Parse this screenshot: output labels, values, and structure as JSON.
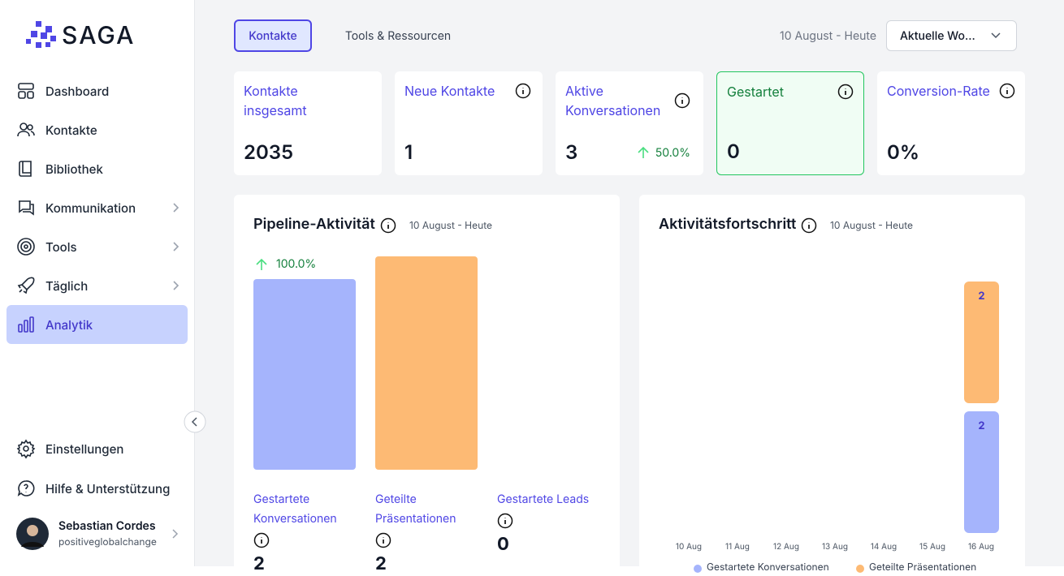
{
  "sidebar": {
    "logo": "SAGA",
    "nav": [
      "Dashboard",
      "Kontakte",
      "Bibliothek",
      "Kommunikation",
      "Tools",
      "Täglich",
      "Analytik"
    ],
    "footer": [
      "Einstellungen",
      "Hilfe & Unterstützung"
    ],
    "user": {
      "name": "Sebastian Cordes",
      "org": "positiveglobalchange"
    }
  },
  "header": {
    "tabs": [
      "Kontakte",
      "Tools & Ressourcen"
    ],
    "date_range": "10 August - Heute",
    "select": "Aktuelle Wo..."
  },
  "cards": [
    {
      "title": "Kontakte insgesamt",
      "value": 2035
    },
    {
      "title": "Neue Kontakte",
      "value": 1
    },
    {
      "title": "Aktive Konversationen",
      "value": 3,
      "change": "50.0%"
    },
    {
      "title": "Gestartet",
      "value": 0
    },
    {
      "title": "Conversion-Rate",
      "value": "0%"
    }
  ],
  "pipeline": {
    "title": "Pipeline-Aktivität",
    "date": "10 August - Heute",
    "bars": [
      {
        "label": "Gestartete Konversationen",
        "value": 2,
        "change": "100.0%",
        "color": "#a5b4fc"
      },
      {
        "label": "Geteilte Präsentationen",
        "value": 2,
        "color": "#fdba74"
      },
      {
        "label": "Gestartete Leads",
        "value": 0
      }
    ]
  },
  "activity": {
    "title": "Aktivitätsfortschritt",
    "date": "10 August - Heute",
    "categories": [
      "10 Aug",
      "11 Aug",
      "12 Aug",
      "13 Aug",
      "14 Aug",
      "15 Aug",
      "16 Aug"
    ],
    "series": [
      {
        "name": "Gestartete Konversationen",
        "color": "#a5b4fc",
        "values": [
          0,
          0,
          0,
          0,
          0,
          0,
          2
        ]
      },
      {
        "name": "Geteilte Präsentationen",
        "color": "#fdba74",
        "values": [
          0,
          0,
          0,
          0,
          0,
          0,
          2
        ]
      }
    ]
  }
}
